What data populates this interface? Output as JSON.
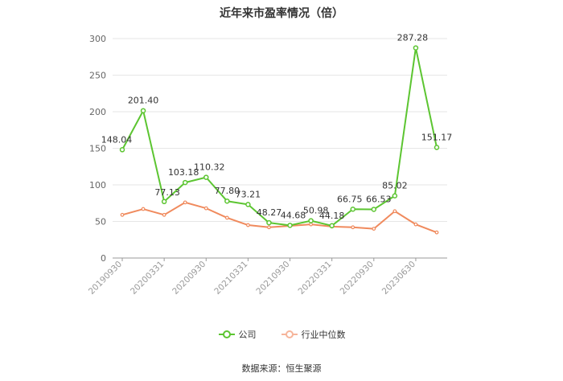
{
  "chart_data": {
    "type": "line",
    "title": "近年来市盈率情况（倍）",
    "x_tick_labels": [
      "20190930",
      "20200331",
      "20200930",
      "20210331",
      "20210930",
      "20220331",
      "20220930",
      "20230630"
    ],
    "ylim": [
      0,
      300
    ],
    "yticks": [
      0,
      50,
      100,
      150,
      200,
      250,
      300
    ],
    "grid": true,
    "legend_placement": "bottom-center",
    "series": [
      {
        "name": "公司",
        "color": "#5cc531",
        "values": [
          148.04,
          201.4,
          77.13,
          103.18,
          110.32,
          77.8,
          73.21,
          48.27,
          44.68,
          50.98,
          44.18,
          66.75,
          66.53,
          85.02,
          287.28,
          151.17
        ],
        "labels": [
          "148.04",
          "201.40",
          "77.13",
          "103.18",
          "110.32",
          "77.80",
          "73.21",
          "48.27",
          "44.68",
          "50.98",
          "44.18",
          "66.75",
          "66.53",
          "85.02",
          "287.28",
          "151.17"
        ]
      },
      {
        "name": "行业中位数",
        "color": "#f08a5d",
        "values": [
          59,
          67,
          59,
          76,
          68,
          55,
          45,
          42,
          44,
          46,
          43,
          42,
          40,
          64,
          46,
          35
        ]
      }
    ]
  },
  "source": "数据来源：恒生聚源"
}
